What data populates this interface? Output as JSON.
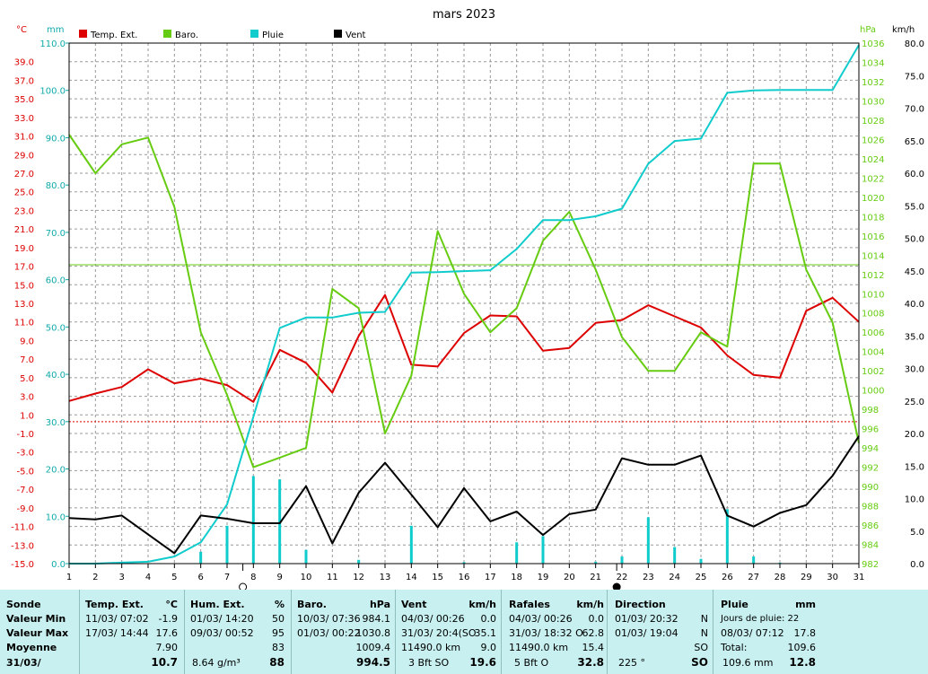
{
  "chart_data": {
    "type": "line",
    "title": "mars 2023",
    "x": [
      1,
      2,
      3,
      4,
      5,
      6,
      7,
      8,
      9,
      10,
      11,
      12,
      13,
      14,
      15,
      16,
      17,
      18,
      19,
      20,
      21,
      22,
      23,
      24,
      25,
      26,
      27,
      28,
      29,
      30,
      31
    ],
    "axes": {
      "temp": {
        "label": "°C",
        "range": [
          -15.0,
          41.0
        ],
        "ticks": [
          "39.0",
          "37.0",
          "35.0",
          "33.0",
          "31.0",
          "29.0",
          "27.0",
          "25.0",
          "23.0",
          "21.0",
          "19.0",
          "17.0",
          "15.0",
          "13.0",
          "11.0",
          "9.0",
          "7.0",
          "5.0",
          "3.0",
          "1.0",
          "-1.0",
          "-3.0",
          "-5.0",
          "-7.0",
          "-9.0",
          "-11.0",
          "-13.0",
          "-15.0"
        ]
      },
      "rain": {
        "label": "mm",
        "range": [
          0,
          110
        ],
        "ticks": [
          "110.0",
          "100.0",
          "90.0",
          "80.0",
          "70.0",
          "60.0",
          "50.0",
          "40.0",
          "30.0",
          "20.0",
          "10.0",
          "0.0"
        ]
      },
      "baro": {
        "label": "hPa",
        "range": [
          982,
          1036
        ],
        "ticks": [
          "1036",
          "1034",
          "1032",
          "1030",
          "1028",
          "1026",
          "1024",
          "1022",
          "1020",
          "1018",
          "1016",
          "1014",
          "1012",
          "1010",
          "1008",
          "1006",
          "1004",
          "1002",
          "1000",
          "998",
          "996",
          "994",
          "992",
          "990",
          "988",
          "986",
          "984",
          "982"
        ]
      },
      "wind": {
        "label": "km/h",
        "range": [
          0,
          80
        ],
        "ticks": [
          "80.0",
          "75.0",
          "70.0",
          "65.0",
          "60.0",
          "55.0",
          "50.0",
          "45.0",
          "40.0",
          "35.0",
          "30.0",
          "25.0",
          "20.0",
          "15.0",
          "10.0",
          "5.0",
          "0.0"
        ]
      }
    },
    "reference_lines": {
      "rain_mm": 30.0,
      "baro_hpa": 1013
    },
    "series": [
      {
        "name": "Temp. Ext.",
        "axis": "temp",
        "color": "#dd0000",
        "values": [
          2.5,
          3.3,
          4.0,
          5.9,
          4.4,
          4.9,
          4.2,
          2.4,
          8.0,
          6.6,
          3.4,
          9.5,
          13.9,
          6.4,
          6.2,
          9.8,
          11.7,
          11.6,
          7.9,
          8.2,
          10.9,
          11.2,
          12.8,
          11.6,
          10.4,
          7.4,
          5.3,
          5.0,
          12.2,
          13.6,
          11.0
        ]
      },
      {
        "name": "Baro.",
        "axis": "baro",
        "color": "#66cc11",
        "values": [
          1026.5,
          1022.5,
          1025.5,
          1026.2,
          1019.0,
          1006.0,
          999.5,
          992.0,
          993.0,
          994.0,
          1010.5,
          1008.5,
          995.5,
          1001.5,
          1016.5,
          1010.0,
          1006.0,
          1008.5,
          1015.5,
          1018.5,
          1012.5,
          1005.5,
          1002.0,
          1002.0,
          1006.0,
          1004.5,
          1023.5,
          1023.5,
          1012.5,
          1007.0,
          994.5
        ]
      },
      {
        "name": "Pluie",
        "axis": "rain",
        "color": "#11cccc",
        "values": [
          0.0,
          0.0,
          0.2,
          0.4,
          1.5,
          4.5,
          12.5,
          31.0,
          49.8,
          52.0,
          52.0,
          53.0,
          53.2,
          61.5,
          61.6,
          61.8,
          62.0,
          66.5,
          72.6,
          72.6,
          73.4,
          75.0,
          84.5,
          89.3,
          89.8,
          99.5,
          100.0,
          100.1,
          100.1,
          100.1,
          109.6
        ]
      },
      {
        "name": "Vent",
        "axis": "wind",
        "color": "#000000",
        "values": [
          7.0,
          6.8,
          7.4,
          4.5,
          1.6,
          7.4,
          6.9,
          6.2,
          6.2,
          11.9,
          3.1,
          10.9,
          15.5,
          10.6,
          5.6,
          11.6,
          6.5,
          8.0,
          4.4,
          7.6,
          8.3,
          16.2,
          15.2,
          15.2,
          16.6,
          7.4,
          5.7,
          7.8,
          9.0,
          13.5,
          19.6
        ]
      }
    ],
    "rain_bars": {
      "axis": "rain",
      "color": "#11cccc",
      "days": [
        6,
        7,
        8,
        9,
        10,
        12,
        14,
        16,
        18,
        19,
        21,
        22,
        23,
        24,
        25,
        26,
        27,
        28
      ],
      "values": [
        2.5,
        8.0,
        18.5,
        17.8,
        2.9,
        0.8,
        8.0,
        0.3,
        4.5,
        5.8,
        0.4,
        1.5,
        9.8,
        3.5,
        1.0,
        11.5,
        1.5,
        0.2
      ]
    },
    "moon_markers": [
      {
        "day": 7.6,
        "phase": "new"
      },
      {
        "day": 21.8,
        "phase": "full"
      }
    ]
  },
  "legend": [
    {
      "name": "Temp. Ext.",
      "color": "#dd0000"
    },
    {
      "name": "Baro.",
      "color": "#66cc11"
    },
    {
      "name": "Pluie",
      "color": "#11cccc"
    },
    {
      "name": "Vent",
      "color": "#000000"
    }
  ],
  "colors": {
    "temp": "#dd0000",
    "baro": "#66cc11",
    "rain": "#11cccc",
    "wind": "#000000",
    "panel": "#c8f0f0"
  },
  "summary": {
    "sonde": {
      "header": "Sonde",
      "rows": [
        "Valeur Min",
        "Valeur Max",
        "Moyenne",
        "31/03/"
      ]
    },
    "temp": {
      "header": "Temp. Ext.",
      "unit": "°C",
      "min_date": "11/03/ 07:02",
      "min": "-1.9",
      "max_date": "17/03/ 14:44",
      "max": "17.6",
      "avg": "7.90",
      "last": "10.7"
    },
    "hum": {
      "header": "Hum. Ext.",
      "unit": "%",
      "min_date": "01/03/ 14:20",
      "min": "50",
      "max_date": "09/03/ 00:52",
      "max": "95",
      "avg": "83",
      "extra": "8.64 g/m³",
      "last": "88"
    },
    "baro": {
      "header": "Baro.",
      "unit": "hPa",
      "min_date": "10/03/ 07:36",
      "min": "984.1",
      "max_date": "01/03/ 00:22",
      "max": "1030.8",
      "avg": "1009.4",
      "last": "994.5"
    },
    "vent": {
      "header": "Vent",
      "unit": "km/h",
      "min_date": "04/03/ 00:26",
      "min": "0.0",
      "max_date": "31/03/ 20:4(SO",
      "max": "35.1",
      "dist": "11490.0 km",
      "avg": "9.0",
      "bft": "3 Bft SO",
      "last": "19.6"
    },
    "rafales": {
      "header": "Rafales",
      "unit": "km/h",
      "min_date": "04/03/ 00:26",
      "min": "0.0",
      "max_date": "31/03/ 18:32 O",
      "max": "62.8",
      "dist": "11490.0 km",
      "avg": "15.4",
      "bft": "5 Bft O",
      "last": "32.8"
    },
    "direction": {
      "header": "Direction",
      "min_date": "01/03/ 20:32",
      "min": "N",
      "max_date": "01/03/ 19:04",
      "max": "N",
      "avg": "SO",
      "deg": "225 °",
      "last": "SO"
    },
    "pluie": {
      "header": "Pluie",
      "unit": "mm",
      "jours": "Jours de pluie: 22",
      "max_date": "08/03/ 07:12",
      "max": "17.8",
      "total_label": "Total:",
      "total": "109.6",
      "month": "109.6 mm",
      "last": "12.8"
    }
  }
}
